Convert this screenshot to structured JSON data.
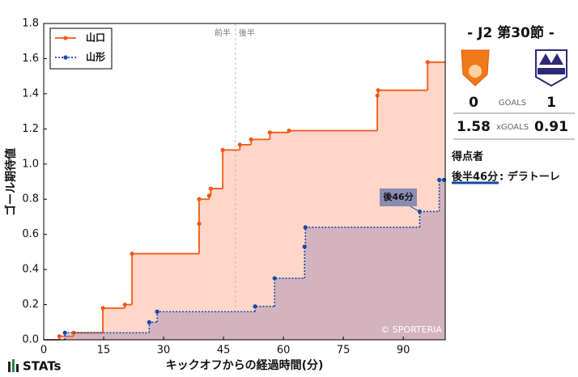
{
  "chart_data": {
    "type": "step",
    "x_label": "キックオフからの経過時間(分)",
    "y_label": "ゴール期待値",
    "xlim": [
      0,
      100.5
    ],
    "ylim": [
      0,
      1.8
    ],
    "xticks": [
      0,
      15,
      30,
      45,
      60,
      75,
      90
    ],
    "yticks": [
      {
        "value": 0,
        "label": "0.0"
      },
      0.2,
      0.4,
      0.6,
      0.8,
      {
        "value": 1,
        "label": "1.0"
      },
      1.2,
      1.4,
      1.6,
      1.8
    ],
    "legend": "upper left",
    "series": [
      {
        "name": "山口",
        "color": "#f05a14",
        "fill": "rgba(255,120,70,0.3)",
        "dash": false,
        "x": [
          0,
          3.9,
          7.5,
          14.8,
          20.3,
          22.1,
          38.9,
          38.9,
          41.4,
          41.8,
          44.8,
          49.1,
          51.9,
          56.6,
          61.4,
          83.5,
          83.7,
          96.1
        ],
        "values": [
          0,
          0.02,
          0.04,
          0.18,
          0.2,
          0.49,
          0.66,
          0.8,
          0.82,
          0.86,
          1.08,
          1.11,
          1.14,
          1.18,
          1.19,
          1.39,
          1.42,
          1.58
        ]
      },
      {
        "name": "山形",
        "color": "#1449a8",
        "fill": "rgba(110,100,170,0.3)",
        "dash": true,
        "x": [
          0,
          5.3,
          26.4,
          28.4,
          52.9,
          57.8,
          65.3,
          65.5,
          94.1,
          99.0,
          100.2
        ],
        "values": [
          0,
          0.04,
          0.1,
          0.16,
          0.19,
          0.35,
          0.53,
          0.64,
          0.73,
          0.91,
          0.91
        ]
      }
    ],
    "halftime": {
      "x": 48,
      "first_label": "前半",
      "second_label": "後半"
    },
    "callout": {
      "label": "後46分",
      "series": 1,
      "point": 8
    },
    "credit": "© SPORTERIA"
  },
  "panel": {
    "title": "- J2 第30節 -",
    "goals_label": "GOALS",
    "home_goals": 0,
    "away_goals": 1,
    "xg_label": "xGOALS",
    "home_xg": 1.58,
    "away_xg": 0.91,
    "scorers_heading": "得点者",
    "scorer_time": "後半46分",
    "scorer_name": ": デラトーレ"
  },
  "footer": {
    "brand": "STATs"
  }
}
